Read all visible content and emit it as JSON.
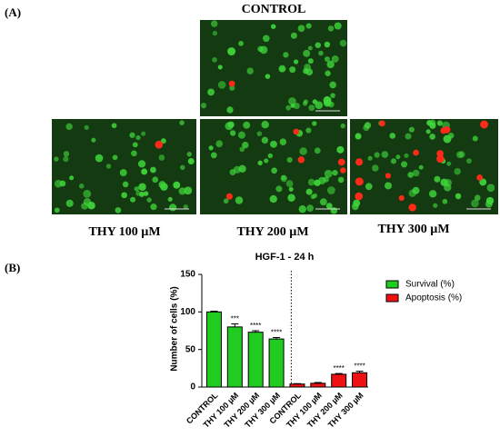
{
  "panel_a": {
    "label": "(A)",
    "images": [
      {
        "caption": "CONTROL"
      },
      {
        "caption": "THY 100 µM"
      },
      {
        "caption": "THY 200 µM"
      },
      {
        "caption": "THY 300 µM"
      }
    ]
  },
  "panel_b": {
    "label": "(B)"
  },
  "chart_data": {
    "type": "bar",
    "title": "HGF-1 - 24 h",
    "y_label": "Number of cells (%)",
    "categories": [
      "CONTROL",
      "THY 100 µM",
      "THY 200 µM",
      "THY 300 µM",
      "CONTROL",
      "THY 100 µM",
      "THY 200 µM",
      "THY 300 µM"
    ],
    "series": [
      {
        "name": "Survival (%)",
        "color": "#1fcc1f",
        "values": [
          100,
          80,
          73,
          64,
          null,
          null,
          null,
          null
        ],
        "errors": [
          1,
          4,
          2,
          2,
          null,
          null,
          null,
          null
        ],
        "significance": [
          null,
          "***",
          "****",
          "****",
          null,
          null,
          null,
          null
        ]
      },
      {
        "name": "Apoptosis (%)",
        "color": "#ee1111",
        "values": [
          null,
          null,
          null,
          null,
          4,
          5,
          17,
          19
        ],
        "errors": [
          null,
          null,
          null,
          null,
          0.5,
          1,
          1,
          2
        ],
        "significance": [
          null,
          null,
          null,
          null,
          null,
          null,
          "****",
          "****"
        ]
      }
    ],
    "ylim": [
      0,
      150
    ],
    "yticks": [
      0,
      50,
      100,
      150
    ],
    "legend": "right"
  }
}
